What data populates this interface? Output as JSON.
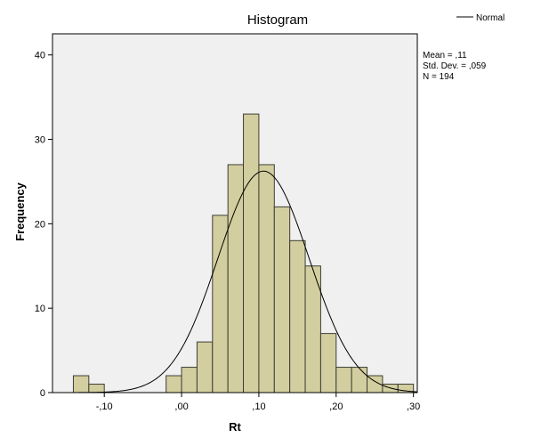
{
  "chart_data": {
    "type": "bar",
    "title": "Histogram",
    "xlabel": "Rt",
    "ylabel": "Frequency",
    "xlim": [
      -0.167,
      0.305
    ],
    "ylim": [
      0,
      42.5
    ],
    "x_ticks": [
      {
        "value": -0.1,
        "label": "-,10"
      },
      {
        "value": 0.0,
        "label": ",00"
      },
      {
        "value": 0.1,
        "label": ",10"
      },
      {
        "value": 0.2,
        "label": ",20"
      },
      {
        "value": 0.3,
        "label": ",30"
      }
    ],
    "y_ticks": [
      {
        "value": 0,
        "label": "0"
      },
      {
        "value": 10,
        "label": "10"
      },
      {
        "value": 20,
        "label": "20"
      },
      {
        "value": 30,
        "label": "30"
      },
      {
        "value": 40,
        "label": "40"
      }
    ],
    "bin_width": 0.02,
    "bins": [
      {
        "start": -0.14,
        "count": 2
      },
      {
        "start": -0.12,
        "count": 1
      },
      {
        "start": -0.02,
        "count": 2
      },
      {
        "start": 0.0,
        "count": 3
      },
      {
        "start": 0.02,
        "count": 6
      },
      {
        "start": 0.04,
        "count": 21
      },
      {
        "start": 0.06,
        "count": 27
      },
      {
        "start": 0.08,
        "count": 33
      },
      {
        "start": 0.1,
        "count": 27
      },
      {
        "start": 0.12,
        "count": 22
      },
      {
        "start": 0.14,
        "count": 18
      },
      {
        "start": 0.16,
        "count": 15
      },
      {
        "start": 0.18,
        "count": 7
      },
      {
        "start": 0.2,
        "count": 3
      },
      {
        "start": 0.22,
        "count": 3
      },
      {
        "start": 0.24,
        "count": 2
      },
      {
        "start": 0.26,
        "count": 1
      },
      {
        "start": 0.28,
        "count": 1
      }
    ],
    "normal_curve": {
      "name": "Normal",
      "mean": 0.106,
      "sd": 0.059,
      "n": 194
    },
    "stats": {
      "mean": "Mean = ,11",
      "sd": "Std. Dev. = ,059",
      "n": "N = 194"
    },
    "legend": {
      "label": "Normal",
      "position": "top-right"
    },
    "colors": {
      "bar_fill": "#d3ce9f",
      "bar_stroke": "#3d3d35",
      "plot_bg": "#f0f0f0",
      "curve": "#000000"
    },
    "grid": false
  }
}
